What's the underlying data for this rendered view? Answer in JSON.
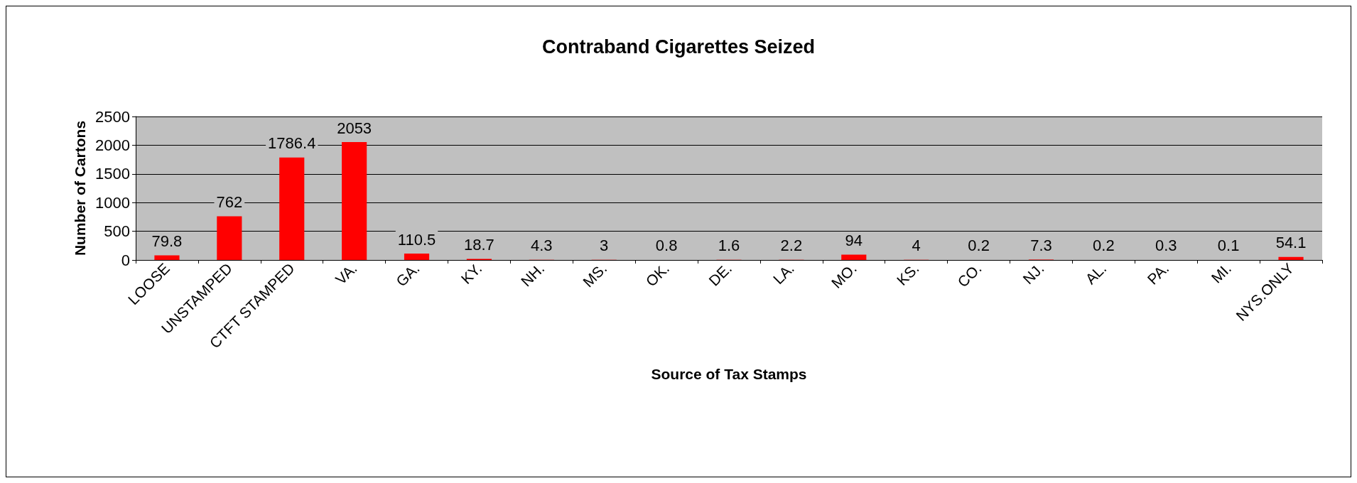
{
  "chart_data": {
    "type": "bar",
    "title": "Contraband Cigarettes Seized",
    "xlabel": "Source of Tax Stamps",
    "ylabel": "Number of Cartons",
    "categories": [
      "LOOSE",
      "UNSTAMPED",
      "CTFT STAMPED",
      "VA.",
      "GA.",
      "KY.",
      "NH.",
      "MS.",
      "OK.",
      "DE.",
      "LA.",
      "MO.",
      "KS.",
      "CO.",
      "NJ.",
      "AL.",
      "PA.",
      "MI.",
      "NYS.ONLY"
    ],
    "values": [
      79.8,
      762,
      1786.4,
      2053,
      110.5,
      18.7,
      4.3,
      3,
      0.8,
      1.6,
      2.2,
      94,
      4,
      0.2,
      7.3,
      0.2,
      0.3,
      0.1,
      54.1
    ],
    "color": "#ff0000",
    "ylim": [
      0,
      2500
    ],
    "yticks": [
      0,
      500,
      1000,
      1500,
      2000,
      2500
    ],
    "grid": "y",
    "data_labels": true
  }
}
